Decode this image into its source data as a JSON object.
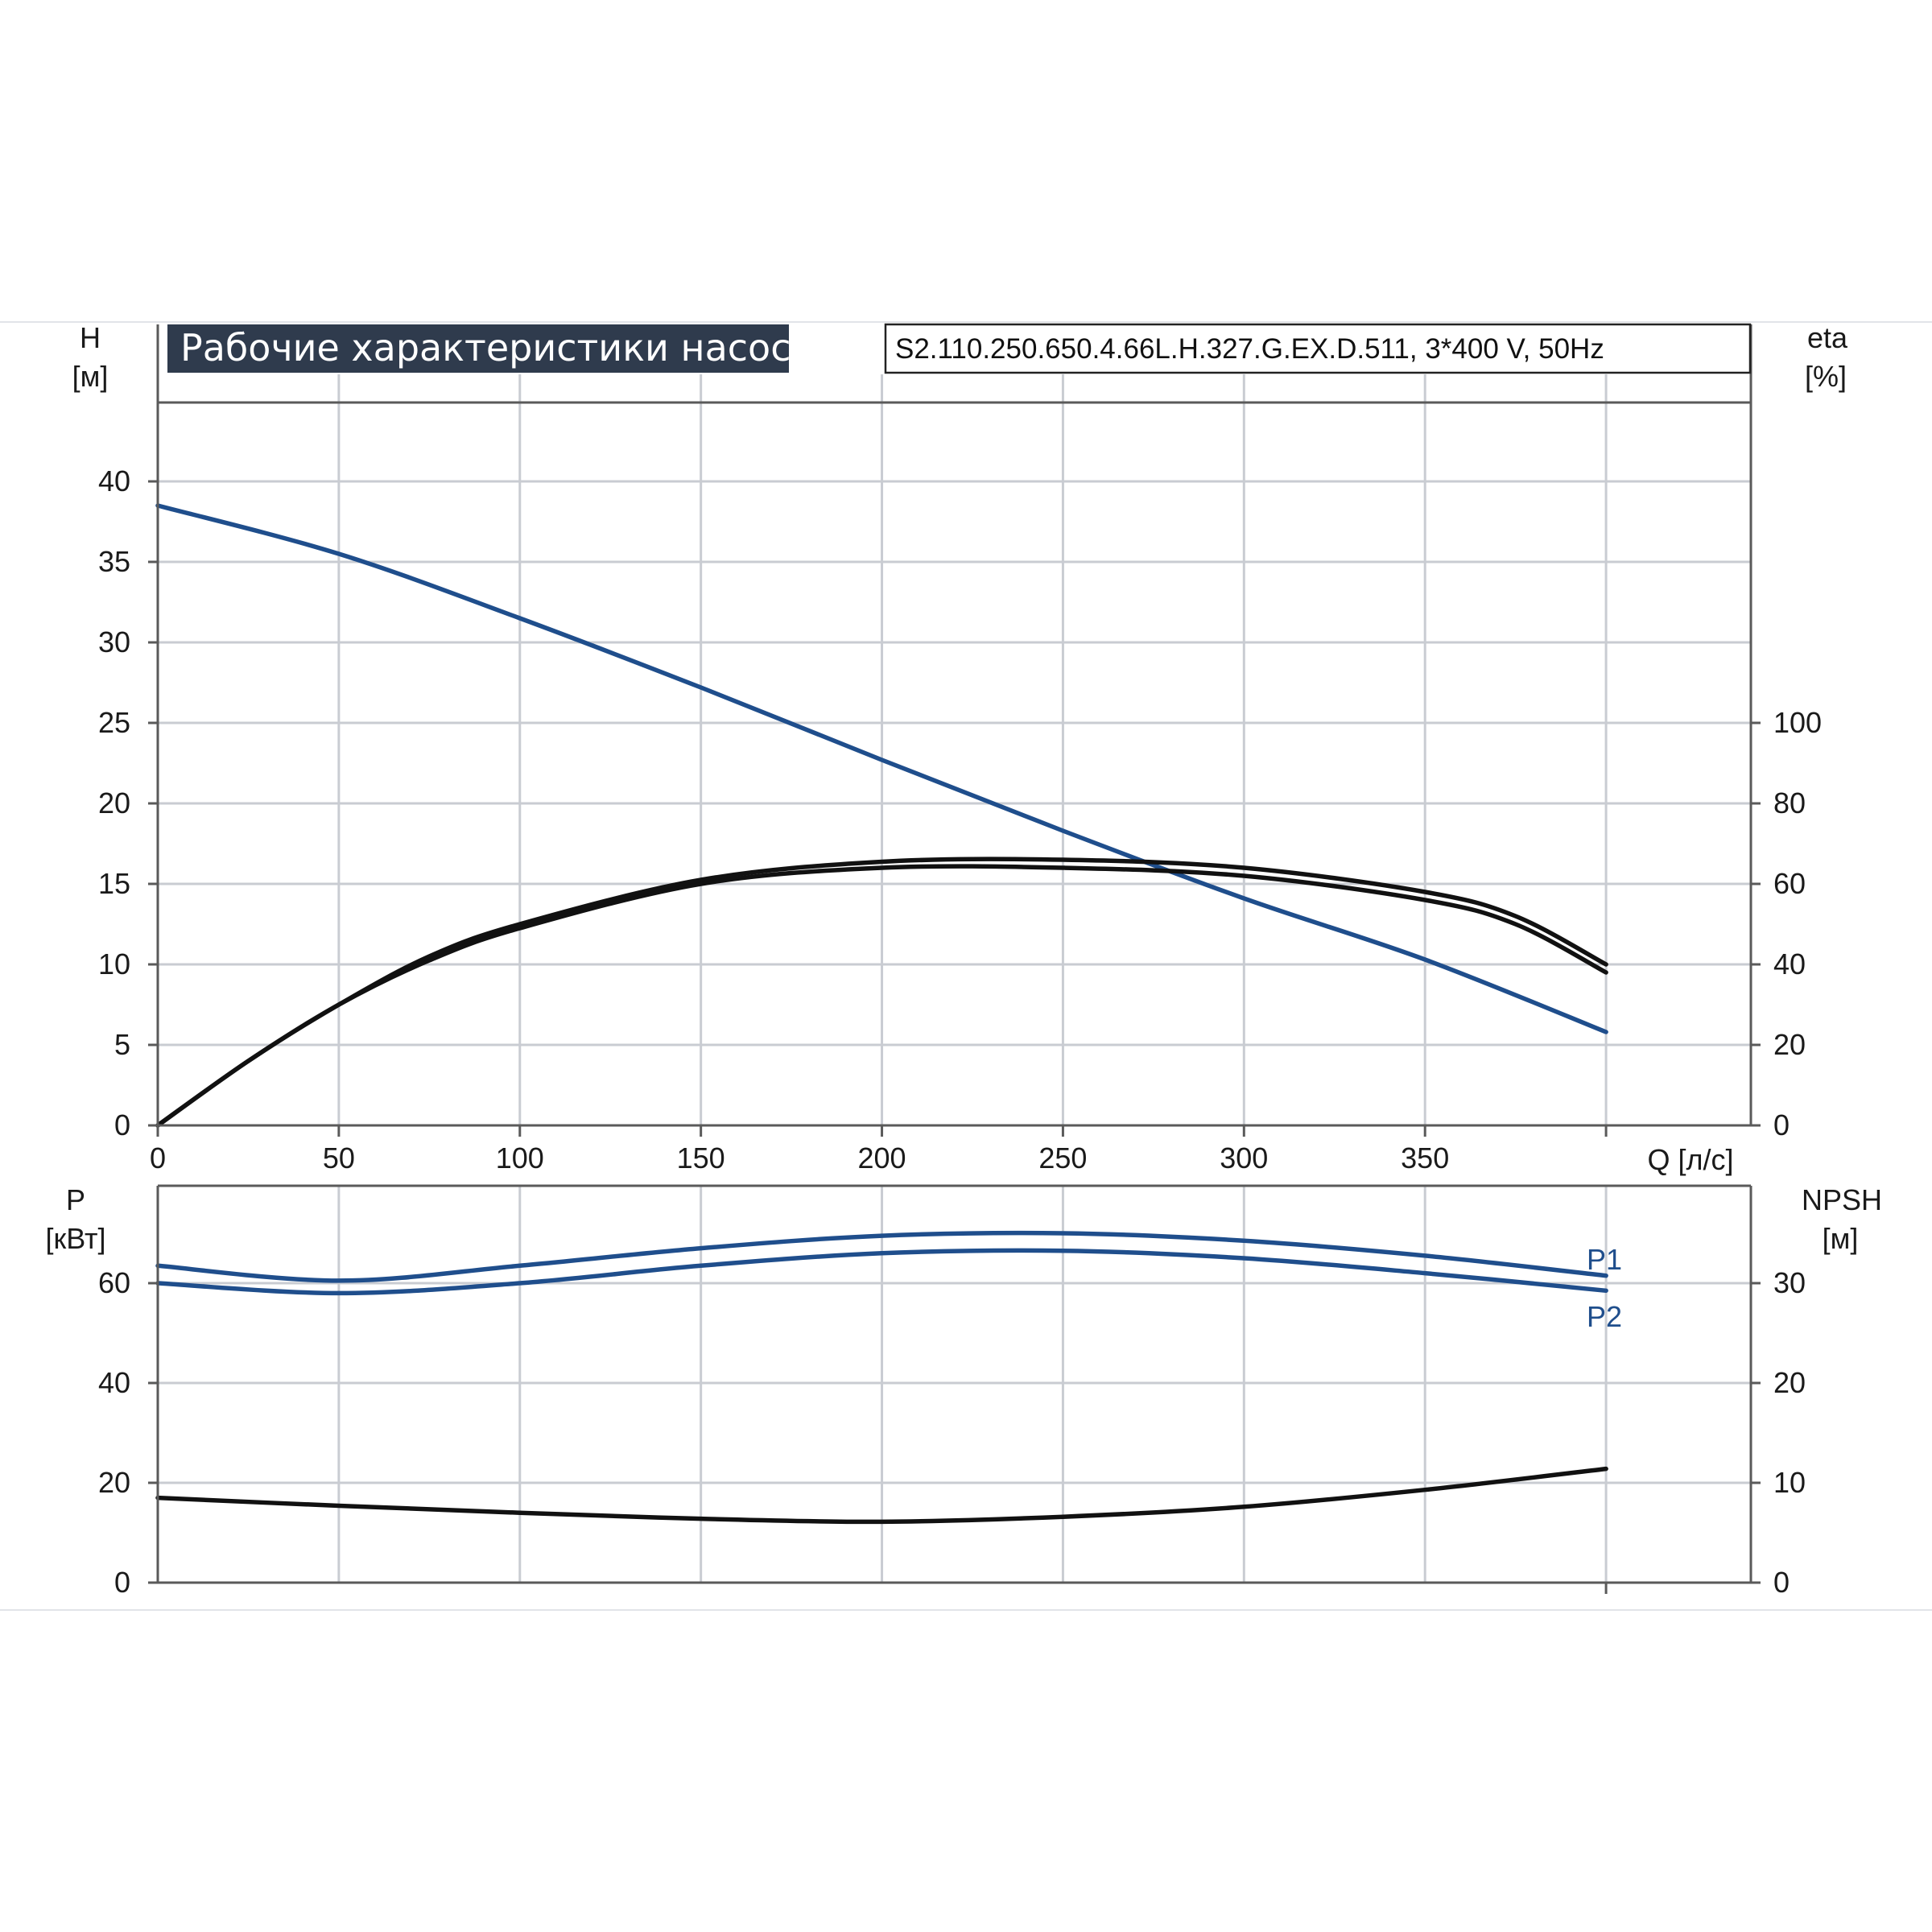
{
  "colors": {
    "blue": "#1f4e8c",
    "black": "#111111",
    "grid": "#c9ccd2",
    "title_bg": "#2f3b4d"
  },
  "chart_data": [
    {
      "type": "line",
      "title": "Рабочие характеристики насоса",
      "subtitle": "S2.110.250.650.4.66L.H.327.G.EX.D.511, 3*400 V, 50Hz",
      "xlabel": "Q [л/с]",
      "xlim": [
        0,
        440
      ],
      "x_ticks": [
        "0",
        "50",
        "100",
        "150",
        "200",
        "250",
        "300",
        "350"
      ],
      "ylabel_left": {
        "line1": "H",
        "line2": "[м]"
      },
      "ylim_left": [
        0,
        45
      ],
      "y_ticks_left": [
        "0",
        "5",
        "10",
        "15",
        "20",
        "25",
        "30",
        "35",
        "40"
      ],
      "ylabel_right": {
        "line1": "eta",
        "line2": "[%]"
      },
      "ylim_right": [
        0,
        180
      ],
      "y_ticks_right": [
        "0",
        "20",
        "40",
        "60",
        "80",
        "100"
      ],
      "grid": true,
      "series": [
        {
          "axis": "left",
          "color": "blue",
          "x": [
            0,
            50,
            100,
            150,
            200,
            250,
            300,
            350,
            400
          ],
          "y": [
            38.5,
            35.5,
            31.5,
            27.2,
            22.7,
            18.3,
            14.1,
            10.3,
            5.8
          ]
        },
        {
          "axis": "right",
          "color": "black",
          "x": [
            0,
            25,
            50,
            75,
            100,
            150,
            200,
            250,
            300,
            350,
            375,
            400
          ],
          "y": [
            0,
            16,
            30,
            41,
            49,
            60,
            64,
            64,
            62,
            56,
            50,
            38
          ]
        },
        {
          "axis": "right",
          "color": "black",
          "x": [
            0,
            25,
            50,
            75,
            100,
            150,
            200,
            250,
            300,
            350,
            375,
            400
          ],
          "y": [
            0,
            16,
            30,
            42,
            50,
            61,
            65.5,
            66,
            64,
            58,
            52,
            40
          ]
        }
      ]
    },
    {
      "type": "line",
      "xlim": [
        0,
        440
      ],
      "ylabel_left": {
        "line1": "P",
        "line2": "[кВт]"
      },
      "ylim_left": [
        0,
        80
      ],
      "y_ticks_left": [
        "0",
        "20",
        "40",
        "60"
      ],
      "ylabel_right": {
        "line1": "NPSH",
        "line2": "[м]"
      },
      "ylim_right": [
        0,
        40
      ],
      "y_ticks_right": [
        "0",
        "10",
        "20",
        "30"
      ],
      "grid": true,
      "series": [
        {
          "name": "P1",
          "axis": "left",
          "color": "blue",
          "x": [
            0,
            50,
            100,
            150,
            200,
            250,
            300,
            350,
            400
          ],
          "y": [
            63.5,
            60.5,
            63.5,
            67,
            69.5,
            70,
            68.5,
            65.5,
            61.5
          ]
        },
        {
          "name": "P2",
          "axis": "left",
          "color": "blue",
          "x": [
            0,
            50,
            100,
            150,
            200,
            250,
            300,
            350,
            400
          ],
          "y": [
            60,
            58,
            60,
            63.5,
            66,
            66.5,
            65,
            62,
            58.5
          ]
        },
        {
          "axis": "right",
          "color": "black",
          "x": [
            0,
            50,
            100,
            150,
            200,
            250,
            300,
            350,
            400
          ],
          "y": [
            8.5,
            7.7,
            7,
            6.4,
            6.1,
            6.6,
            7.6,
            9.3,
            11.4
          ]
        }
      ]
    }
  ]
}
